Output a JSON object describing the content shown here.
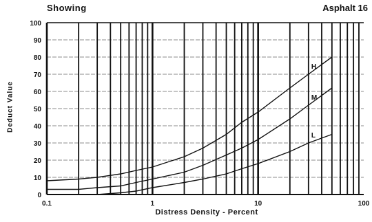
{
  "chart_data": {
    "type": "line",
    "title_left": "Showing",
    "title_right": "Asphalt 16",
    "xlabel": "Distress Density - Percent",
    "ylabel": "Deduct Value",
    "xscale": "log",
    "xlim": [
      0.1,
      100
    ],
    "ylim": [
      0,
      100
    ],
    "x_ticks": [
      0.1,
      1,
      10,
      100
    ],
    "x_tick_labels": [
      "0.1",
      "1",
      "10",
      "100"
    ],
    "y_ticks": [
      0,
      10,
      20,
      30,
      40,
      50,
      60,
      70,
      80,
      90,
      100
    ],
    "y_tick_labels": [
      "0",
      "10",
      "20",
      "30",
      "40",
      "50",
      "60",
      "70",
      "80",
      "90",
      "100"
    ],
    "grid": true,
    "series": [
      {
        "name": "H",
        "x": [
          0.1,
          0.2,
          0.3,
          0.5,
          0.7,
          1,
          2,
          3,
          5,
          7,
          10,
          20,
          30,
          50
        ],
        "y": [
          8,
          9,
          10,
          12,
          14,
          16,
          22,
          27,
          35,
          42,
          48,
          62,
          70,
          80
        ]
      },
      {
        "name": "M",
        "x": [
          0.1,
          0.2,
          0.3,
          0.5,
          0.7,
          1,
          2,
          3,
          5,
          7,
          10,
          20,
          30,
          50
        ],
        "y": [
          3,
          3,
          4,
          5,
          7,
          9,
          13,
          17,
          23,
          27,
          32,
          44,
          52,
          62
        ]
      },
      {
        "name": "L",
        "x": [
          0.1,
          0.2,
          0.3,
          0.5,
          0.7,
          1,
          2,
          3,
          5,
          7,
          10,
          20,
          30,
          50
        ],
        "y": [
          0,
          0,
          0,
          1,
          2,
          4,
          7,
          9,
          12,
          15,
          18,
          25,
          30,
          35
        ]
      }
    ]
  }
}
